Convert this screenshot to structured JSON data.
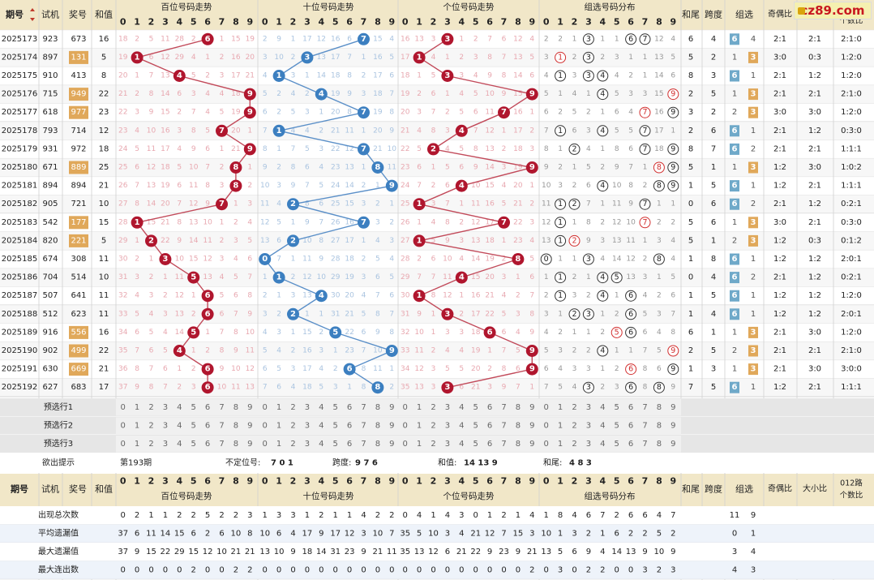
{
  "header": {
    "qihao": "期号",
    "shiji": "试机",
    "jianghao": "奖号",
    "hezhi": "和值",
    "bai_title": "百位号码走势",
    "shi_title": "十位号码走势",
    "ge_title": "个位号码走势",
    "zu_title": "组选号码分布",
    "hewei": "和尾",
    "kuadu": "跨度",
    "zuxuan": "组选",
    "jiou": "奇偶比",
    "daxiao": "大小比",
    "lu012_1": "012路",
    "lu012_2": "个数比"
  },
  "rows": [
    {
      "q": "2025173",
      "t": "923",
      "a": "673",
      "s": "16",
      "bai": "18 2 5 11 28 2 6 1 15 19",
      "shi": "2 9 1 17 12 16 6 7 15 4",
      "ge": "16 13 3 3 1 2 7 6 12 4",
      "zu": "2 2 1 3 1 1 6 7 12 4",
      "hw": "6",
      "kd": "4",
      "g6": "6",
      "g3": "4",
      "jo": "2:1",
      "dx": "2:1",
      "lu": "2:1:0"
    },
    {
      "q": "2025174",
      "t": "897",
      "a": "131",
      "s": "5",
      "bai": "19 1 6 12 29 4 1 2 16 20",
      "shi": "3 10 2 3 13 17 7 1 16 5",
      "ge": "17 1 4 1 2 3 8 7 13 5",
      "zu": "3 1 2 3 2 3 1 1 13 5",
      "hw": "5",
      "kd": "2",
      "g6": "1",
      "g3": "3",
      "jo": "3:0",
      "dx": "0:3",
      "lu": "1:2:0"
    },
    {
      "q": "2025175",
      "t": "910",
      "a": "413",
      "s": "8",
      "bai": "20 1 7 13 4 5 2 3 17 21",
      "shi": "4 1 3 1 14 18 8 2 17 6",
      "ge": "18 1 5 3 3 4 9 8 14 6",
      "zu": "4 1 3 3 4 4 2 1 14 6",
      "hw": "8",
      "kd": "3",
      "g6": "6",
      "g3": "1",
      "jo": "2:1",
      "dx": "1:2",
      "lu": "1:2:0"
    },
    {
      "q": "2025176",
      "t": "715",
      "a": "949",
      "s": "22",
      "bai": "21 2 8 14 6 3 4 4 18 9",
      "shi": "5 2 4 2 4 19 9 3 18 7",
      "ge": "19 2 6 1 4 5 10 9 15 9",
      "zu": "5 1 4 1 4 5 3 3 15 9",
      "hw": "2",
      "kd": "5",
      "g6": "1",
      "g3": "3",
      "jo": "2:1",
      "dx": "2:1",
      "lu": "2:1:0"
    },
    {
      "q": "2025177",
      "t": "618",
      "a": "977",
      "s": "23",
      "bai": "22 3 9 15 2 7 4 5 19 9",
      "shi": "6 2 5 3 1 20 8 7 19 8",
      "ge": "20 3 7 2 5 6 11 7 16 1",
      "zu": "6 2 5 2 1 6 4 7 16 9",
      "hw": "3",
      "kd": "2",
      "g6": "2",
      "g3": "3",
      "jo": "3:0",
      "dx": "3:0",
      "lu": "1:2:0"
    },
    {
      "q": "2025178",
      "t": "793",
      "a": "714",
      "s": "12",
      "bai": "23 4 10 16 3 8 5 7 20 1",
      "shi": "7 1 4 4 2 21 11 1 20 9",
      "ge": "21 4 8 3 4 7 12 1 17 2",
      "zu": "7 1 6 3 4 5 5 7 17 1",
      "hw": "2",
      "kd": "6",
      "g6": "6",
      "g3": "1",
      "jo": "2:1",
      "dx": "1:2",
      "lu": "0:3:0"
    },
    {
      "q": "2025179",
      "t": "931",
      "a": "972",
      "s": "18",
      "bai": "24 5 11 17 4 9 6 1 21 9",
      "shi": "8 1 7 5 3 22 12 7 21 10",
      "ge": "22 5 2 4 5 8 13 2 18 3",
      "zu": "8 1 2 4 1 8 6 7 18 9",
      "hw": "8",
      "kd": "7",
      "g6": "6",
      "g3": "2",
      "jo": "2:1",
      "dx": "2:1",
      "lu": "1:1:1"
    },
    {
      "q": "2025180",
      "t": "671",
      "a": "889",
      "s": "25",
      "bai": "25 6 12 18 5 10 7 2 8 1",
      "shi": "9 2 8 6 4 23 13 1 8 11",
      "ge": "23 6 1 5 6 9 14 3 19 9",
      "zu": "9 2 1 5 2 9 7 1 8 9",
      "hw": "5",
      "kd": "1",
      "g6": "1",
      "g3": "3",
      "jo": "1:2",
      "dx": "3:0",
      "lu": "1:0:2"
    },
    {
      "q": "2025181",
      "t": "894",
      "a": "894",
      "s": "21",
      "bai": "26 7 13 19 6 11 8 3 8 2",
      "shi": "10 3 9 7 5 24 14 2 1 9",
      "ge": "24 7 2 6 4 10 15 4 20 1",
      "zu": "10 3 2 6 4 10 8 2 8 9",
      "hw": "1",
      "kd": "5",
      "g6": "6",
      "g3": "1",
      "jo": "1:2",
      "dx": "2:1",
      "lu": "1:1:1"
    },
    {
      "q": "2025182",
      "t": "905",
      "a": "721",
      "s": "10",
      "bai": "27 8 14 20 7 12 9 7 1 3",
      "shi": "11 4 2 8 6 25 15 3 2 1",
      "ge": "25 1 3 7 1 11 16 5 21 2",
      "zu": "11 1 2 7 1 11 9 7 1 1",
      "hw": "0",
      "kd": "6",
      "g6": "6",
      "g3": "2",
      "jo": "2:1",
      "dx": "1:2",
      "lu": "0:2:1"
    },
    {
      "q": "2025183",
      "t": "542",
      "a": "177",
      "s": "15",
      "bai": "28 1 15 21 8 13 10 1 2 4",
      "shi": "12 5 1 9 7 26 16 7 3 2",
      "ge": "26 1 4 8 2 12 17 7 22 3",
      "zu": "12 1 1 8 2 12 10 7 2 2",
      "hw": "5",
      "kd": "6",
      "g6": "1",
      "g3": "3",
      "jo": "3:0",
      "dx": "2:1",
      "lu": "0:3:0"
    },
    {
      "q": "2025184",
      "t": "820",
      "a": "221",
      "s": "5",
      "bai": "29 1 2 22 9 14 11 2 3 5",
      "shi": "13 6 2 10 8 27 17 1 4 3",
      "ge": "27 1 5 9 3 13 18 1 23 4",
      "zu": "13 1 2 9 3 13 11 1 3 4",
      "hw": "5",
      "kd": "1",
      "g6": "2",
      "g3": "3",
      "jo": "1:2",
      "dx": "0:3",
      "lu": "0:1:2"
    },
    {
      "q": "2025185",
      "t": "674",
      "a": "308",
      "s": "11",
      "bai": "30 2 1 3 10 15 12 3 4 6",
      "shi": "0 7 1 11 9 28 18 2 5 4",
      "ge": "28 2 6 10 4 14 19 2 8 5",
      "zu": "0 1 1 3 4 14 12 2 8 4",
      "hw": "1",
      "kd": "8",
      "g6": "6",
      "g3": "1",
      "jo": "1:2",
      "dx": "1:2",
      "lu": "2:0:1"
    },
    {
      "q": "2025186",
      "t": "704",
      "a": "514",
      "s": "10",
      "bai": "31 3 2 1 11 5 13 4 5 7",
      "shi": "1 1 2 12 10 29 19 3 6 5",
      "ge": "29 7 7 11 4 15 20 3 1 6",
      "zu": "1 1 2 1 4 5 13 3 1 5",
      "hw": "0",
      "kd": "4",
      "g6": "6",
      "g3": "2",
      "jo": "2:1",
      "dx": "1:2",
      "lu": "0:2:1"
    },
    {
      "q": "2025187",
      "t": "507",
      "a": "641",
      "s": "11",
      "bai": "32 4 3 2 12 1 6 5 6 8",
      "shi": "2 1 3 13 4 30 20 4 7 6",
      "ge": "30 1 8 12 1 16 21 4 2 7",
      "zu": "2 1 3 2 4 1 6 4 2 6",
      "hw": "1",
      "kd": "5",
      "g6": "6",
      "g3": "1",
      "jo": "1:2",
      "dx": "1:2",
      "lu": "1:2:0"
    },
    {
      "q": "2025188",
      "t": "512",
      "a": "623",
      "s": "11",
      "bai": "33 5 4 3 13 2 6 6 7 9",
      "shi": "3 2 2 1 1 31 21 5 8 7",
      "ge": "31 9 1 3 2 17 22 5 3 8",
      "zu": "3 1 2 3 1 2 6 5 3 7",
      "hw": "1",
      "kd": "4",
      "g6": "6",
      "g3": "1",
      "jo": "1:2",
      "dx": "1:2",
      "lu": "2:0:1"
    },
    {
      "q": "2025189",
      "t": "916",
      "a": "556",
      "s": "16",
      "bai": "34 6 5 4 14 5 1 7 8 10",
      "shi": "4 3 1 15 2 5 22 6 9 8",
      "ge": "32 10 1 3 3 18 6 6 4 9",
      "zu": "4 2 1 1 2 5 6 6 4 8",
      "hw": "6",
      "kd": "1",
      "g6": "1",
      "g3": "3",
      "jo": "2:1",
      "dx": "3:0",
      "lu": "1:2:0"
    },
    {
      "q": "2025190",
      "t": "902",
      "a": "499",
      "s": "22",
      "bai": "35 7 6 5 4 1 2 8 9 11",
      "shi": "5 4 2 16 3 1 23 7 10 9",
      "ge": "33 11 2 4 4 19 1 7 5 9",
      "zu": "5 3 2 2 4 1 1 7 5 9",
      "hw": "2",
      "kd": "5",
      "g6": "2",
      "g3": "3",
      "jo": "2:1",
      "dx": "2:1",
      "lu": "2:1:0"
    },
    {
      "q": "2025191",
      "t": "630",
      "a": "669",
      "s": "21",
      "bai": "36 8 7 6 1 2 6 9 10 12",
      "shi": "6 5 3 17 4 2 6 8 11 1",
      "ge": "34 12 3 5 5 20 2 8 6 9",
      "zu": "6 4 3 3 1 2 6 8 6 9",
      "hw": "1",
      "kd": "3",
      "g6": "1",
      "g3": "3",
      "jo": "2:1",
      "dx": "3:0",
      "lu": "3:0:0"
    },
    {
      "q": "2025192",
      "t": "627",
      "a": "683",
      "s": "17",
      "bai": "37 9 8 7 2 3 6 10 11 13",
      "shi": "7 6 4 18 5 3 1 8 12 2",
      "ge": "35 13 3 6 6 21 3 9 7 1",
      "zu": "7 5 4 3 2 3 6 8 8 9",
      "hw": "7",
      "kd": "5",
      "g6": "6",
      "g3": "1",
      "jo": "1:2",
      "dx": "2:1",
      "lu": "1:1:1"
    }
  ],
  "preselect": [
    "预选行1",
    "预选行2",
    "预选行3"
  ],
  "hint": {
    "label": "欲出提示",
    "next_period": "第193期",
    "dw_label": "不定位号:",
    "dw_value": "7 0 1",
    "kd_label": "跨度:",
    "kd_value": "9 7 6",
    "hz_label": "和值:",
    "hz_value": "14 13 9",
    "hw_label": "和尾:",
    "hw_value": "4 8 3"
  },
  "stats": [
    {
      "label": "出现总次数",
      "bai": "0 2 1 1 2 2 5 2 2 3",
      "shi": "1 3 3 1 2 1 1 4 2 2",
      "ge": "0 4 1 4 3 0 1 2 1 4",
      "zu": "1 8 4 6 7 2 6 6 4 7",
      "g6": "11",
      "g3": "9"
    },
    {
      "label": "平均遗漏值",
      "bai": "37 6 11 14 15 6 2 6 10 8",
      "shi": "10 6 4 17 9 17 12 3 10 7",
      "ge": "35 5 10 3 4 21 12 7 15 3",
      "zu": "10 1 3 2 1 6 2 2 5 2",
      "g6": "0",
      "g3": "1"
    },
    {
      "label": "最大遗漏值",
      "bai": "37 9 15 22 29 15 12 10 21 21",
      "shi": "13 10 9 18 14 31 23 9 21 11",
      "ge": "35 13 12 6 21 22 9 23 9 21",
      "zu": "13 5 6 9 4 14 13 9 10 9",
      "g6": "3",
      "g3": "4"
    },
    {
      "label": "最大连出数",
      "bai": "0 0 0 0 0 2 0 0 2 2",
      "shi": "0 0 0 0 0 0 0 0 0 0",
      "ge": "0 0 0 0 0 0 0 0 0 2",
      "zu": "0 3 0 2 2 0 0 3 2 3",
      "g6": "4",
      "g3": "3"
    }
  ],
  "digits": [
    "0",
    "1",
    "2",
    "3",
    "4",
    "5",
    "6",
    "7",
    "8",
    "9"
  ],
  "colors": {
    "red": "#b0162e",
    "blue": "#3c7fc0",
    "header_bg": "#f1e7c8",
    "orange": "#e0a85a",
    "teal": "#6fa9c9"
  }
}
